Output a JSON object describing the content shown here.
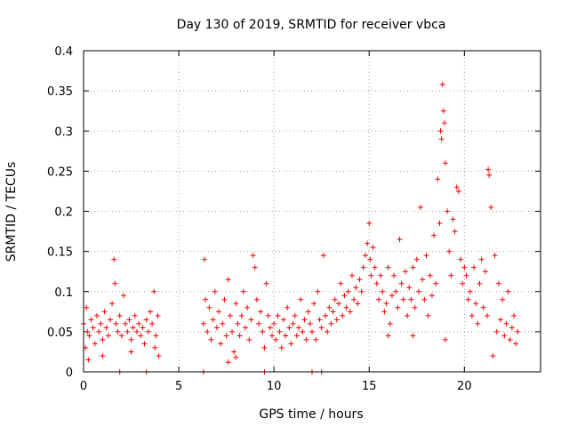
{
  "chart_data": {
    "type": "scatter",
    "title": "Day 130 of 2019, SRMTID for receiver vbca",
    "xlabel": "GPS time / hours",
    "ylabel": "SRMTID / TECUs",
    "xlim": [
      0,
      24
    ],
    "ylim": [
      0,
      0.4
    ],
    "xticks": [
      0,
      5,
      10,
      15,
      20
    ],
    "xtick_labels": [
      "0",
      "5",
      "10",
      "15",
      "20"
    ],
    "yticks": [
      0,
      0.05,
      0.1,
      0.15,
      0.2,
      0.25,
      0.3,
      0.35,
      0.4
    ],
    "ytick_labels": [
      "0",
      "0.05",
      "0.1",
      "0.15",
      "0.2",
      "0.25",
      "0.3",
      "0.35",
      "0.4"
    ],
    "grid": true,
    "marker": "+",
    "color": "#ff0000",
    "series": [
      {
        "name": "SRMTID",
        "points": [
          [
            0.0,
            0.06
          ],
          [
            0.1,
            0.03
          ],
          [
            0.15,
            0.08
          ],
          [
            0.2,
            0.05
          ],
          [
            0.3,
            0.045
          ],
          [
            0.4,
            0.065
          ],
          [
            0.5,
            0.055
          ],
          [
            0.6,
            0.035
          ],
          [
            0.7,
            0.07
          ],
          [
            0.8,
            0.05
          ],
          [
            0.9,
            0.06
          ],
          [
            1.0,
            0.04
          ],
          [
            1.1,
            0.075
          ],
          [
            1.2,
            0.055
          ],
          [
            1.3,
            0.045
          ],
          [
            1.4,
            0.065
          ],
          [
            1.5,
            0.085
          ],
          [
            1.6,
            0.14
          ],
          [
            1.65,
            0.11
          ],
          [
            1.7,
            0.06
          ],
          [
            1.8,
            0.05
          ],
          [
            1.9,
            0.07
          ],
          [
            2.0,
            0.045
          ],
          [
            2.1,
            0.095
          ],
          [
            2.2,
            0.06
          ],
          [
            2.3,
            0.05
          ],
          [
            2.4,
            0.065
          ],
          [
            2.5,
            0.04
          ],
          [
            2.6,
            0.055
          ],
          [
            2.7,
            0.07
          ],
          [
            2.8,
            0.05
          ],
          [
            2.9,
            0.06
          ],
          [
            3.0,
            0.045
          ],
          [
            3.1,
            0.055
          ],
          [
            3.2,
            0.035
          ],
          [
            3.3,
            0.065
          ],
          [
            3.4,
            0.05
          ],
          [
            3.5,
            0.075
          ],
          [
            3.6,
            0.06
          ],
          [
            3.7,
            0.1
          ],
          [
            3.75,
            0.03
          ],
          [
            3.8,
            0.045
          ],
          [
            3.9,
            0.07
          ],
          [
            3.95,
            0.02
          ],
          [
            0.25,
            0.015
          ],
          [
            1.0,
            0.02
          ],
          [
            2.5,
            0.025
          ],
          [
            6.3,
            0.06
          ],
          [
            6.35,
            0.14
          ],
          [
            6.4,
            0.09
          ],
          [
            6.5,
            0.05
          ],
          [
            6.6,
            0.08
          ],
          [
            6.7,
            0.04
          ],
          [
            6.8,
            0.065
          ],
          [
            6.9,
            0.1
          ],
          [
            7.0,
            0.055
          ],
          [
            7.1,
            0.075
          ],
          [
            7.2,
            0.035
          ],
          [
            7.3,
            0.06
          ],
          [
            7.4,
            0.09
          ],
          [
            7.5,
            0.045
          ],
          [
            7.6,
            0.115
          ],
          [
            7.7,
            0.07
          ],
          [
            7.8,
            0.05
          ],
          [
            7.9,
            0.025
          ],
          [
            8.0,
            0.085
          ],
          [
            8.1,
            0.06
          ],
          [
            8.2,
            0.045
          ],
          [
            8.3,
            0.07
          ],
          [
            8.4,
            0.1
          ],
          [
            8.5,
            0.055
          ],
          [
            8.6,
            0.08
          ],
          [
            8.7,
            0.04
          ],
          [
            8.8,
            0.065
          ],
          [
            8.9,
            0.145
          ],
          [
            9.0,
            0.13
          ],
          [
            9.1,
            0.09
          ],
          [
            9.2,
            0.06
          ],
          [
            9.3,
            0.075
          ],
          [
            9.4,
            0.05
          ],
          [
            9.5,
            0.03
          ],
          [
            9.6,
            0.11
          ],
          [
            9.7,
            0.07
          ],
          [
            9.8,
            0.055
          ],
          [
            7.6,
            0.012
          ],
          [
            8.0,
            0.018
          ],
          [
            9.9,
            0.045
          ],
          [
            10.0,
            0.06
          ],
          [
            10.1,
            0.04
          ],
          [
            10.2,
            0.07
          ],
          [
            10.3,
            0.05
          ],
          [
            10.4,
            0.03
          ],
          [
            10.5,
            0.065
          ],
          [
            10.6,
            0.045
          ],
          [
            10.7,
            0.08
          ],
          [
            10.8,
            0.055
          ],
          [
            10.9,
            0.035
          ],
          [
            11.0,
            0.06
          ],
          [
            11.1,
            0.07
          ],
          [
            11.2,
            0.045
          ],
          [
            11.3,
            0.055
          ],
          [
            11.4,
            0.09
          ],
          [
            11.5,
            0.05
          ],
          [
            11.6,
            0.065
          ],
          [
            11.7,
            0.04
          ],
          [
            11.8,
            0.075
          ],
          [
            11.9,
            0.06
          ],
          [
            12.0,
            0.05
          ],
          [
            12.1,
            0.085
          ],
          [
            12.2,
            0.04
          ],
          [
            12.3,
            0.1
          ],
          [
            12.4,
            0.065
          ],
          [
            12.5,
            0.055
          ],
          [
            12.6,
            0.145
          ],
          [
            12.7,
            0.07
          ],
          [
            12.8,
            0.05
          ],
          [
            12.9,
            0.08
          ],
          [
            13.0,
            0.06
          ],
          [
            13.1,
            0.075
          ],
          [
            13.2,
            0.09
          ],
          [
            13.3,
            0.065
          ],
          [
            13.4,
            0.085
          ],
          [
            13.5,
            0.11
          ],
          [
            13.6,
            0.07
          ],
          [
            13.7,
            0.095
          ],
          [
            13.8,
            0.08
          ],
          [
            13.9,
            0.1
          ],
          [
            14.0,
            0.075
          ],
          [
            14.1,
            0.12
          ],
          [
            14.2,
            0.09
          ],
          [
            14.3,
            0.105
          ],
          [
            14.4,
            0.085
          ],
          [
            14.5,
            0.115
          ],
          [
            14.6,
            0.1
          ],
          [
            14.7,
            0.13
          ],
          [
            14.8,
            0.145
          ],
          [
            14.9,
            0.16
          ],
          [
            15.0,
            0.185
          ],
          [
            15.05,
            0.14
          ],
          [
            15.1,
            0.12
          ],
          [
            15.2,
            0.155
          ],
          [
            15.3,
            0.13
          ],
          [
            15.4,
            0.11
          ],
          [
            15.5,
            0.09
          ],
          [
            15.6,
            0.12
          ],
          [
            15.7,
            0.1
          ],
          [
            15.8,
            0.075
          ],
          [
            15.9,
            0.085
          ],
          [
            16.0,
            0.13
          ],
          [
            16.1,
            0.06
          ],
          [
            16.2,
            0.095
          ],
          [
            16.3,
            0.12
          ],
          [
            16.4,
            0.1
          ],
          [
            16.5,
            0.08
          ],
          [
            16.6,
            0.165
          ],
          [
            16.7,
            0.11
          ],
          [
            16.8,
            0.09
          ],
          [
            16.9,
            0.125
          ],
          [
            17.0,
            0.07
          ],
          [
            17.1,
            0.105
          ],
          [
            17.2,
            0.09
          ],
          [
            17.3,
            0.13
          ],
          [
            17.4,
            0.08
          ],
          [
            17.5,
            0.14
          ],
          [
            17.6,
            0.1
          ],
          [
            17.7,
            0.205
          ],
          [
            17.8,
            0.115
          ],
          [
            17.9,
            0.09
          ],
          [
            18.0,
            0.145
          ],
          [
            18.1,
            0.07
          ],
          [
            18.2,
            0.12
          ],
          [
            18.3,
            0.095
          ],
          [
            18.4,
            0.17
          ],
          [
            18.5,
            0.11
          ],
          [
            18.6,
            0.24
          ],
          [
            18.7,
            0.185
          ],
          [
            18.75,
            0.3
          ],
          [
            18.8,
            0.29
          ],
          [
            18.85,
            0.358
          ],
          [
            18.9,
            0.325
          ],
          [
            18.95,
            0.31
          ],
          [
            19.0,
            0.26
          ],
          [
            19.1,
            0.2
          ],
          [
            19.2,
            0.15
          ],
          [
            19.3,
            0.12
          ],
          [
            19.4,
            0.19
          ],
          [
            19.5,
            0.175
          ],
          [
            19.6,
            0.23
          ],
          [
            19.7,
            0.225
          ],
          [
            19.8,
            0.14
          ],
          [
            19.9,
            0.11
          ],
          [
            20.0,
            0.13
          ],
          [
            20.1,
            0.12
          ],
          [
            20.2,
            0.09
          ],
          [
            20.3,
            0.1
          ],
          [
            20.4,
            0.07
          ],
          [
            20.5,
            0.13
          ],
          [
            20.6,
            0.085
          ],
          [
            20.7,
            0.06
          ],
          [
            20.8,
            0.11
          ],
          [
            20.9,
            0.14
          ],
          [
            21.0,
            0.08
          ],
          [
            21.1,
            0.125
          ],
          [
            21.2,
            0.07
          ],
          [
            21.25,
            0.252
          ],
          [
            21.3,
            0.245
          ],
          [
            21.4,
            0.205
          ],
          [
            21.5,
            0.02
          ],
          [
            21.6,
            0.145
          ],
          [
            21.7,
            0.05
          ],
          [
            21.8,
            0.11
          ],
          [
            21.9,
            0.065
          ],
          [
            22.0,
            0.09
          ],
          [
            22.1,
            0.045
          ],
          [
            22.2,
            0.06
          ],
          [
            22.3,
            0.1
          ],
          [
            22.4,
            0.04
          ],
          [
            22.5,
            0.055
          ],
          [
            22.6,
            0.07
          ],
          [
            22.7,
            0.035
          ],
          [
            22.8,
            0.05
          ],
          [
            17.3,
            0.045
          ],
          [
            19.0,
            0.04
          ],
          [
            16.0,
            0.045
          ],
          [
            1.9,
            0.0
          ],
          [
            3.3,
            0.0
          ],
          [
            6.3,
            0.0
          ],
          [
            9.5,
            0.0
          ],
          [
            12.0,
            0.0
          ],
          [
            12.5,
            0.0
          ]
        ]
      }
    ]
  }
}
